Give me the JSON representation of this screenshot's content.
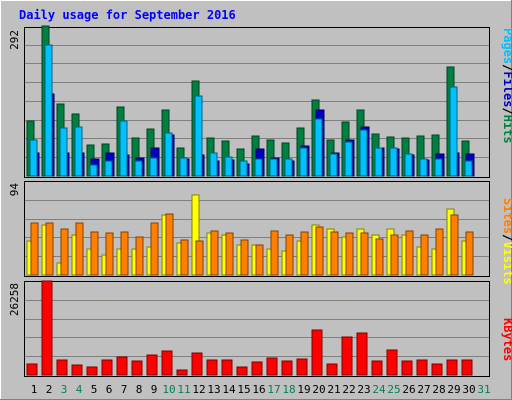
{
  "chart_data": [
    {
      "type": "bar",
      "title": "Daily usage for September 2016",
      "categories": [
        "1",
        "2",
        "3",
        "4",
        "5",
        "6",
        "7",
        "8",
        "9",
        "10",
        "11",
        "12",
        "13",
        "14",
        "15",
        "16",
        "17",
        "18",
        "19",
        "20",
        "21",
        "22",
        "23",
        "24",
        "25",
        "26",
        "27",
        "28",
        "29",
        "30",
        "31"
      ],
      "weekend_days": [
        "3",
        "4",
        "10",
        "11",
        "17",
        "18",
        "24",
        "25",
        "31"
      ],
      "y_tick_label": "292",
      "ylim": [
        0,
        292
      ],
      "series": [
        {
          "name": "Hits",
          "color": "#008040",
          "values": [
            107,
            292,
            140,
            120,
            61,
            62,
            135,
            73,
            91,
            129,
            55,
            185,
            74,
            69,
            52,
            77,
            71,
            64,
            94,
            148,
            71,
            106,
            129,
            82,
            76,
            74,
            78,
            80,
            213,
            68,
            0
          ]
        },
        {
          "name": "Files",
          "color": "#0000c0",
          "values": [
            44,
            160,
            45,
            45,
            33,
            44,
            40,
            35,
            54,
            80,
            33,
            40,
            30,
            32,
            23,
            52,
            36,
            30,
            58,
            129,
            44,
            70,
            96,
            54,
            52,
            40,
            32,
            42,
            45,
            43,
            0
          ]
        },
        {
          "name": "Pages",
          "color": "#00c0ff",
          "values": [
            71,
            255,
            94,
            95,
            21,
            29,
            107,
            30,
            36,
            84,
            35,
            155,
            45,
            37,
            30,
            33,
            34,
            33,
            54,
            111,
            43,
            67,
            89,
            54,
            55,
            42,
            33,
            34,
            174,
            30,
            0
          ]
        }
      ],
      "legend": [
        "Pages",
        "Files",
        "Hits"
      ]
    },
    {
      "type": "bar",
      "categories": [
        "1",
        "2",
        "3",
        "4",
        "5",
        "6",
        "7",
        "8",
        "9",
        "10",
        "11",
        "12",
        "13",
        "14",
        "15",
        "16",
        "17",
        "18",
        "19",
        "20",
        "21",
        "22",
        "23",
        "24",
        "25",
        "26",
        "27",
        "28",
        "29",
        "30",
        "31"
      ],
      "y_tick_label": "94",
      "ylim": [
        0,
        94
      ],
      "series": [
        {
          "name": "Visits",
          "color": "#ffff00",
          "values": [
            34,
            50,
            12,
            40,
            26,
            20,
            26,
            26,
            28,
            60,
            32,
            80,
            42,
            40,
            30,
            30,
            26,
            24,
            34,
            50,
            46,
            38,
            46,
            40,
            46,
            40,
            28,
            26,
            66,
            34,
            0
          ]
        },
        {
          "name": "Sites",
          "color": "#ff8000",
          "values": [
            52,
            52,
            46,
            52,
            43,
            42,
            43,
            38,
            52,
            61,
            35,
            34,
            44,
            42,
            35,
            30,
            44,
            40,
            43,
            48,
            43,
            42,
            42,
            36,
            40,
            44,
            40,
            46,
            60,
            43,
            0
          ]
        }
      ],
      "legend": [
        "Sites",
        "Visits"
      ]
    },
    {
      "type": "bar",
      "categories": [
        "1",
        "2",
        "3",
        "4",
        "5",
        "6",
        "7",
        "8",
        "9",
        "10",
        "11",
        "12",
        "13",
        "14",
        "15",
        "16",
        "17",
        "18",
        "19",
        "20",
        "21",
        "22",
        "23",
        "24",
        "25",
        "26",
        "27",
        "28",
        "29",
        "30",
        "31"
      ],
      "y_tick_label": "26258",
      "ylim": [
        0,
        26258
      ],
      "series": [
        {
          "name": "KBytes",
          "color": "#ff0000",
          "values": [
            3200,
            26258,
            4200,
            2900,
            2300,
            4200,
            4900,
            3900,
            5700,
            6700,
            1500,
            6100,
            4200,
            4200,
            2300,
            3600,
            4800,
            3900,
            4600,
            12500,
            3000,
            10500,
            11700,
            4000,
            6900,
            4000,
            4200,
            3100,
            4200,
            4200,
            0
          ]
        }
      ],
      "legend": [
        "KBytes"
      ]
    }
  ],
  "colors": {
    "background": "#C0C0C0",
    "plot_background": "#C0C0C0",
    "title": "#0000FF",
    "weekday_label": "#000000",
    "weekend_label": "#00805C"
  }
}
